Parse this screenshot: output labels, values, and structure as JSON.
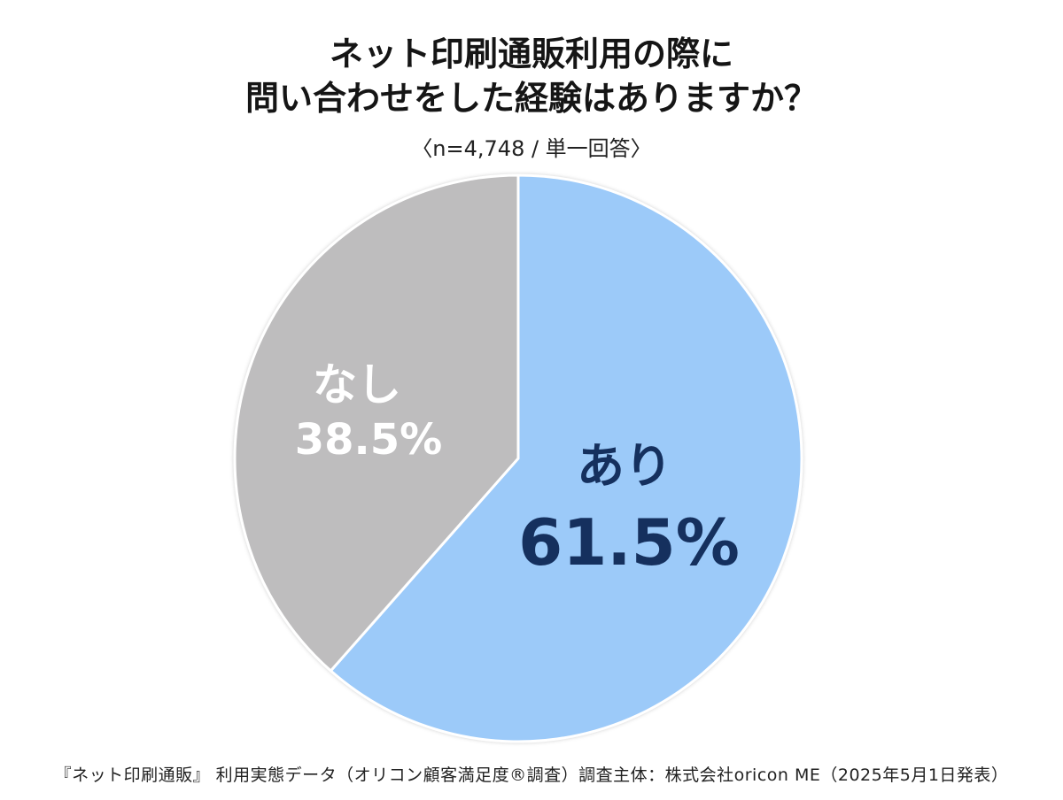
{
  "chart_data": {
    "type": "pie",
    "title": [
      "ネット印刷通販利用の際に",
      "問い合わせをした経験はありますか？"
    ],
    "subtitle": "〈n=4,748 / 単一回答〉",
    "categories": [
      "あり",
      "なし"
    ],
    "values": [
      61.5,
      38.5
    ],
    "value_labels": [
      "61.5%",
      "38.5%"
    ],
    "colors": [
      "#9CCAF9",
      "#BEBDBE"
    ],
    "label_colors": [
      "#15305E",
      "#FFFFFF"
    ]
  },
  "footer": "『ネット印刷通販』 利用実態データ（オリコン顧客満足度®調査）調査主体：株式会社oricon ME（2025年5月1日発表）"
}
